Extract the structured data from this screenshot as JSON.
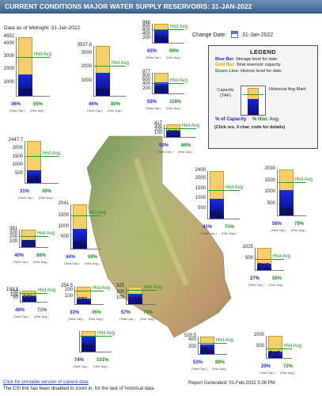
{
  "header": {
    "title": "CURRENT CONDITIONS MAJOR WATER SUPPLY RESERVOIRS: 31-JAN-2022"
  },
  "data_date": "Data as of Midnight: 31-Jan-2022",
  "change_date": {
    "label": "Change Date:",
    "value": "31-Jan-2022",
    "icon": "calendar-icon"
  },
  "legend": {
    "title": "LEGEND",
    "blue_label": "Blue Bar:",
    "blue_text": "Storage level for date",
    "gold_label": "Gold Bar:",
    "gold_text": "Total reservoir capacity",
    "green_label": "Green Line:",
    "green_text": "Historic level for date.",
    "cap_label": "Capacity (TAF)",
    "hist_label": "Historical Avg Mark",
    "pct_capacity": "% of Capacity",
    "pct_hist": "% Hist. Avg.",
    "click_note": "(Click res. 3 char. code for details)"
  },
  "common": {
    "hist_avg_label": "Hist Avg",
    "total_cap": "(Total Cap.)",
    "hist_avg_sub": "(Hist. Avg.)"
  },
  "reservoirs": [
    {
      "code": "SHA",
      "capacity": "4552",
      "mid": [
        "4000",
        "3000",
        "2000",
        "1000"
      ],
      "pct_capacity": "36%",
      "pct_hist": "55%",
      "storage_frac": 0.36,
      "hist_frac": 0.65
    },
    {
      "code": "ORO",
      "capacity": "3537.6",
      "mid": [
        "3000",
        "2000",
        "1000"
      ],
      "pct_capacity": "46%",
      "pct_hist": "80%",
      "storage_frac": 0.46,
      "hist_frac": 0.58
    },
    {
      "code": "BUL",
      "capacity": "966",
      "mid": [
        "800",
        "600",
        "400",
        "200"
      ],
      "pct_capacity": "65%",
      "pct_hist": "99%",
      "storage_frac": 0.65,
      "hist_frac": 0.66
    },
    {
      "code": "FOL",
      "capacity": "977",
      "mid": [
        "800",
        "600",
        "400",
        "200"
      ],
      "pct_capacity": "55%",
      "pct_hist": "119%",
      "storage_frac": 0.55,
      "hist_frac": 0.46
    },
    {
      "code": "CMN",
      "capacity": "417",
      "mid": [
        "300",
        "200",
        "100"
      ],
      "pct_capacity": "52%",
      "pct_hist": "86%",
      "storage_frac": 0.52,
      "hist_frac": 0.6
    },
    {
      "code": "CLE",
      "capacity": "2447.7",
      "mid": [
        "2000",
        "1500",
        "1000",
        "500"
      ],
      "pct_capacity": "31%",
      "pct_hist": "49%",
      "storage_frac": 0.31,
      "hist_frac": 0.63
    },
    {
      "code": "NML",
      "capacity": "2400",
      "mid": [
        "2000",
        "1500",
        "1000",
        "500"
      ],
      "pct_capacity": "41%",
      "pct_hist": "71%",
      "storage_frac": 0.41,
      "hist_frac": 0.58
    },
    {
      "code": "DNP",
      "capacity": "2030",
      "mid": [
        "1500",
        "1000",
        "500"
      ],
      "pct_capacity": "56%",
      "pct_hist": "79%",
      "storage_frac": 0.56,
      "hist_frac": 0.71
    },
    {
      "code": "SNL",
      "capacity": "2041",
      "mid": [
        "1500",
        "1000",
        "500"
      ],
      "pct_capacity": "44%",
      "pct_hist": "59%",
      "storage_frac": 0.44,
      "hist_frac": 0.74
    },
    {
      "code": "WRS",
      "capacity": "381",
      "mid": [
        "300",
        "200",
        "100"
      ],
      "pct_capacity": "40%",
      "pct_hist": "66%",
      "storage_frac": 0.4,
      "hist_frac": 0.61
    },
    {
      "code": "EXC",
      "capacity": "1025",
      "mid": [
        "500"
      ],
      "pct_capacity": "27%",
      "pct_hist": "56%",
      "storage_frac": 0.27,
      "hist_frac": 0.48
    },
    {
      "code": "CCH",
      "capacity": "193.3",
      "mid": [
        "150",
        "100",
        "50"
      ],
      "pct_capacity": "48%",
      "pct_hist": "71%",
      "storage_frac": 0.48,
      "hist_frac": 0.68
    },
    {
      "code": "CSI",
      "capacity": "254.5",
      "mid": [
        "200",
        "100"
      ],
      "pct_capacity": "33%",
      "pct_hist": "45%",
      "storage_frac": 0.33,
      "hist_frac": 0.73
    },
    {
      "code": "CAS",
      "capacity": "325",
      "mid": [
        "200",
        "100"
      ],
      "pct_capacity": "57%",
      "pct_hist": "73%",
      "storage_frac": 0.57,
      "hist_frac": 0.78
    },
    {
      "code": "DMV",
      "capacity": "",
      "mid": [],
      "pct_capacity": "74%",
      "pct_hist": "101%",
      "storage_frac": 0.74,
      "hist_frac": 0.73
    },
    {
      "code": "MIL",
      "capacity": "520.5",
      "mid": [
        "400",
        "200"
      ],
      "pct_capacity": "53%",
      "pct_hist": "89%",
      "storage_frac": 0.53,
      "hist_frac": 0.6
    },
    {
      "code": "PNF",
      "capacity": "1000",
      "mid": [
        "500"
      ],
      "pct_capacity": "29%",
      "pct_hist": "72%",
      "storage_frac": 0.29,
      "hist_frac": 0.4
    }
  ],
  "footer": {
    "link": "Click for printable version of current data",
    "note": "The CSI link has been disabled to zoom in, for the lack of historical data.",
    "report": "Report Generated: 01-Feb-2022 5:36 PM"
  }
}
